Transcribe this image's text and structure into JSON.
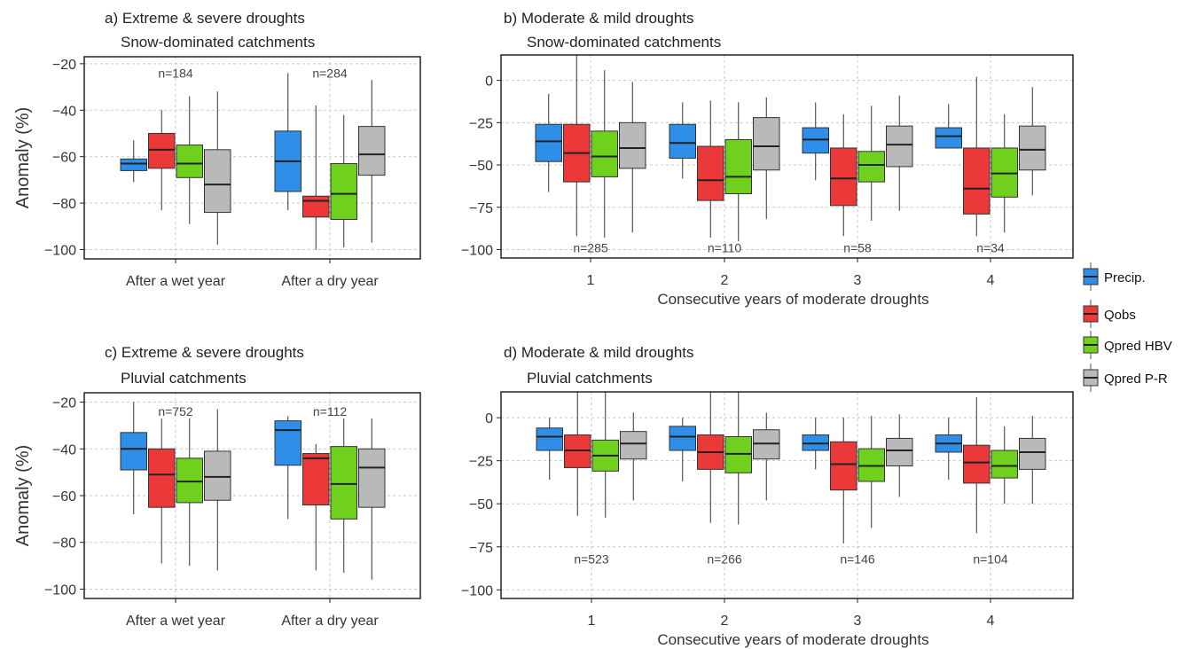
{
  "legend": [
    {
      "label": "Precip.",
      "color": "#2e8ee8"
    },
    {
      "label": "Qobs",
      "color": "#eb3838"
    },
    {
      "label": "Qpred HBV",
      "color": "#6fd11d"
    },
    {
      "label": "Qpred P-R",
      "color": "#b9b9b9"
    }
  ],
  "chart_data": [
    {
      "type": "box",
      "title": "a) Extreme & severe droughts",
      "subtitle": "Snow-dominated catchments",
      "ylabel": "Anomaly (%)",
      "xlabel": "",
      "ylim": [
        -104,
        -17
      ],
      "yticks": [
        -20,
        -40,
        -60,
        -80,
        -100
      ],
      "ytick_labels": [
        "−20",
        "−40",
        "−60",
        "−80",
        "−100"
      ],
      "categories": [
        "After a wet year",
        "After a dry year"
      ],
      "n_labels": [
        "n=184",
        "n=284"
      ],
      "n_label_y": -24,
      "grid": true,
      "series": [
        {
          "name": "Precip.",
          "boxes": [
            {
              "min": -71,
              "q1": -66,
              "median": -63,
              "q3": -61,
              "max": -53
            },
            {
              "min": -83,
              "q1": -75,
              "median": -62,
              "q3": -49,
              "max": -24
            }
          ]
        },
        {
          "name": "Qobs",
          "boxes": [
            {
              "min": -83,
              "q1": -65,
              "median": -57,
              "q3": -50,
              "max": -40
            },
            {
              "min": -100,
              "q1": -86,
              "median": -79,
              "q3": -77,
              "max": -38
            }
          ]
        },
        {
          "name": "Qpred HBV",
          "boxes": [
            {
              "min": -89,
              "q1": -69,
              "median": -63,
              "q3": -55,
              "max": -34
            },
            {
              "min": -99,
              "q1": -87,
              "median": -76,
              "q3": -63,
              "max": -42
            }
          ]
        },
        {
          "name": "Qpred P-R",
          "boxes": [
            {
              "min": -98,
              "q1": -84,
              "median": -72,
              "q3": -57,
              "max": -32
            },
            {
              "min": -97,
              "q1": -68,
              "median": -59,
              "q3": -47,
              "max": -27
            }
          ]
        }
      ]
    },
    {
      "type": "box",
      "title": "b) Moderate & mild droughts",
      "subtitle": "Snow-dominated catchments",
      "ylabel": "",
      "xlabel": "Consecutive years of moderate droughts",
      "ylim": [
        -105,
        15
      ],
      "yticks": [
        0,
        -25,
        -50,
        -75,
        -100
      ],
      "ytick_labels": [
        "0",
        "−25",
        "−50",
        "−75",
        "−100"
      ],
      "categories": [
        "1",
        "2",
        "3",
        "4"
      ],
      "n_labels": [
        "n=285",
        "n=110",
        "n=58",
        "n=34"
      ],
      "n_label_y": -99,
      "grid": true,
      "series": [
        {
          "name": "Precip.",
          "boxes": [
            {
              "min": -66,
              "q1": -48,
              "median": -36,
              "q3": -26,
              "max": -8
            },
            {
              "min": -58,
              "q1": -46,
              "median": -37,
              "q3": -26,
              "max": -13
            },
            {
              "min": -59,
              "q1": -43,
              "median": -35,
              "q3": -28,
              "max": -13
            },
            {
              "min": -40,
              "q1": -40,
              "median": -33,
              "q3": -28,
              "max": -14
            }
          ]
        },
        {
          "name": "Qobs",
          "boxes": [
            {
              "min": -92,
              "q1": -60,
              "median": -43,
              "q3": -26,
              "max": 15
            },
            {
              "min": -93,
              "q1": -71,
              "median": -59,
              "q3": -39,
              "max": -12
            },
            {
              "min": -92,
              "q1": -74,
              "median": -58,
              "q3": -40,
              "max": -20
            },
            {
              "min": -92,
              "q1": -79,
              "median": -64,
              "q3": -40,
              "max": 2
            }
          ]
        },
        {
          "name": "Qpred HBV",
          "boxes": [
            {
              "min": -93,
              "q1": -57,
              "median": -45,
              "q3": -30,
              "max": 6
            },
            {
              "min": -95,
              "q1": -67,
              "median": -57,
              "q3": -35,
              "max": -13
            },
            {
              "min": -83,
              "q1": -60,
              "median": -50,
              "q3": -42,
              "max": -15
            },
            {
              "min": -90,
              "q1": -69,
              "median": -55,
              "q3": -40,
              "max": -20
            }
          ]
        },
        {
          "name": "Qpred P-R",
          "boxes": [
            {
              "min": -90,
              "q1": -52,
              "median": -40,
              "q3": -25,
              "max": -1
            },
            {
              "min": -82,
              "q1": -53,
              "median": -39,
              "q3": -22,
              "max": -10
            },
            {
              "min": -77,
              "q1": -51,
              "median": -38,
              "q3": -27,
              "max": -9
            },
            {
              "min": -68,
              "q1": -53,
              "median": -41,
              "q3": -27,
              "max": -4
            }
          ]
        }
      ]
    },
    {
      "type": "box",
      "title": "c) Extreme & severe droughts",
      "subtitle": "Pluvial catchments",
      "ylabel": "Anomaly (%)",
      "xlabel": "",
      "ylim": [
        -104,
        -16
      ],
      "yticks": [
        -20,
        -40,
        -60,
        -80,
        -100
      ],
      "ytick_labels": [
        "−20",
        "−40",
        "−60",
        "−80",
        "−100"
      ],
      "categories": [
        "After a wet year",
        "After a dry year"
      ],
      "n_labels": [
        "n=752",
        "n=112"
      ],
      "n_label_y": -24,
      "grid": true,
      "series": [
        {
          "name": "Precip.",
          "boxes": [
            {
              "min": -68,
              "q1": -49,
              "median": -40,
              "q3": -33,
              "max": -20
            },
            {
              "min": -70,
              "q1": -47,
              "median": -32,
              "q3": -28,
              "max": -26
            }
          ]
        },
        {
          "name": "Qobs",
          "boxes": [
            {
              "min": -89,
              "q1": -65,
              "median": -51,
              "q3": -40,
              "max": -27
            },
            {
              "min": -92,
              "q1": -64,
              "median": -44,
              "q3": -42,
              "max": -38
            }
          ]
        },
        {
          "name": "Qpred HBV",
          "boxes": [
            {
              "min": -90,
              "q1": -63,
              "median": -54,
              "q3": -44,
              "max": -27
            },
            {
              "min": -93,
              "q1": -70,
              "median": -55,
              "q3": -39,
              "max": -27
            }
          ]
        },
        {
          "name": "Qpred P-R",
          "boxes": [
            {
              "min": -92,
              "q1": -62,
              "median": -52,
              "q3": -41,
              "max": -23
            },
            {
              "min": -96,
              "q1": -65,
              "median": -48,
              "q3": -40,
              "max": -27
            }
          ]
        }
      ]
    },
    {
      "type": "box",
      "title": "d) Moderate & mild droughts",
      "subtitle": "Pluvial catchments",
      "ylabel": "",
      "xlabel": "Consecutive years of moderate droughts",
      "ylim": [
        -105,
        15
      ],
      "yticks": [
        0,
        -25,
        -50,
        -75,
        -100
      ],
      "ytick_labels": [
        "0",
        "−25",
        "−50",
        "−75",
        "−100"
      ],
      "categories": [
        "1",
        "2",
        "3",
        "4"
      ],
      "n_labels": [
        "n=523",
        "n=266",
        "n=146",
        "n=104"
      ],
      "n_label_y": -82,
      "grid": true,
      "series": [
        {
          "name": "Precip.",
          "boxes": [
            {
              "min": -36,
              "q1": -19,
              "median": -11,
              "q3": -6,
              "max": 0
            },
            {
              "min": -37,
              "q1": -19,
              "median": -11,
              "q3": -5,
              "max": 0
            },
            {
              "min": -30,
              "q1": -19,
              "median": -15,
              "q3": -10,
              "max": 0
            },
            {
              "min": -36,
              "q1": -20,
              "median": -15,
              "q3": -10,
              "max": 0
            }
          ]
        },
        {
          "name": "Qobs",
          "boxes": [
            {
              "min": -57,
              "q1": -29,
              "median": -19,
              "q3": -10,
              "max": 15
            },
            {
              "min": -61,
              "q1": -30,
              "median": -20,
              "q3": -10,
              "max": 15
            },
            {
              "min": -73,
              "q1": -42,
              "median": -27,
              "q3": -14,
              "max": 0
            },
            {
              "min": -67,
              "q1": -38,
              "median": -26,
              "q3": -16,
              "max": 12
            }
          ]
        },
        {
          "name": "Qpred HBV",
          "boxes": [
            {
              "min": -58,
              "q1": -31,
              "median": -22,
              "q3": -13,
              "max": 15
            },
            {
              "min": -62,
              "q1": -32,
              "median": -21,
              "q3": -11,
              "max": 15
            },
            {
              "min": -64,
              "q1": -37,
              "median": -28,
              "q3": -18,
              "max": 1
            },
            {
              "min": -50,
              "q1": -35,
              "median": -28,
              "q3": -19,
              "max": -5
            }
          ]
        },
        {
          "name": "Qpred P-R",
          "boxes": [
            {
              "min": -48,
              "q1": -24,
              "median": -15,
              "q3": -8,
              "max": 3
            },
            {
              "min": -48,
              "q1": -24,
              "median": -15,
              "q3": -7,
              "max": 3
            },
            {
              "min": -46,
              "q1": -28,
              "median": -19,
              "q3": -12,
              "max": 2
            },
            {
              "min": -50,
              "q1": -30,
              "median": -20,
              "q3": -12,
              "max": 1
            }
          ]
        }
      ]
    }
  ]
}
